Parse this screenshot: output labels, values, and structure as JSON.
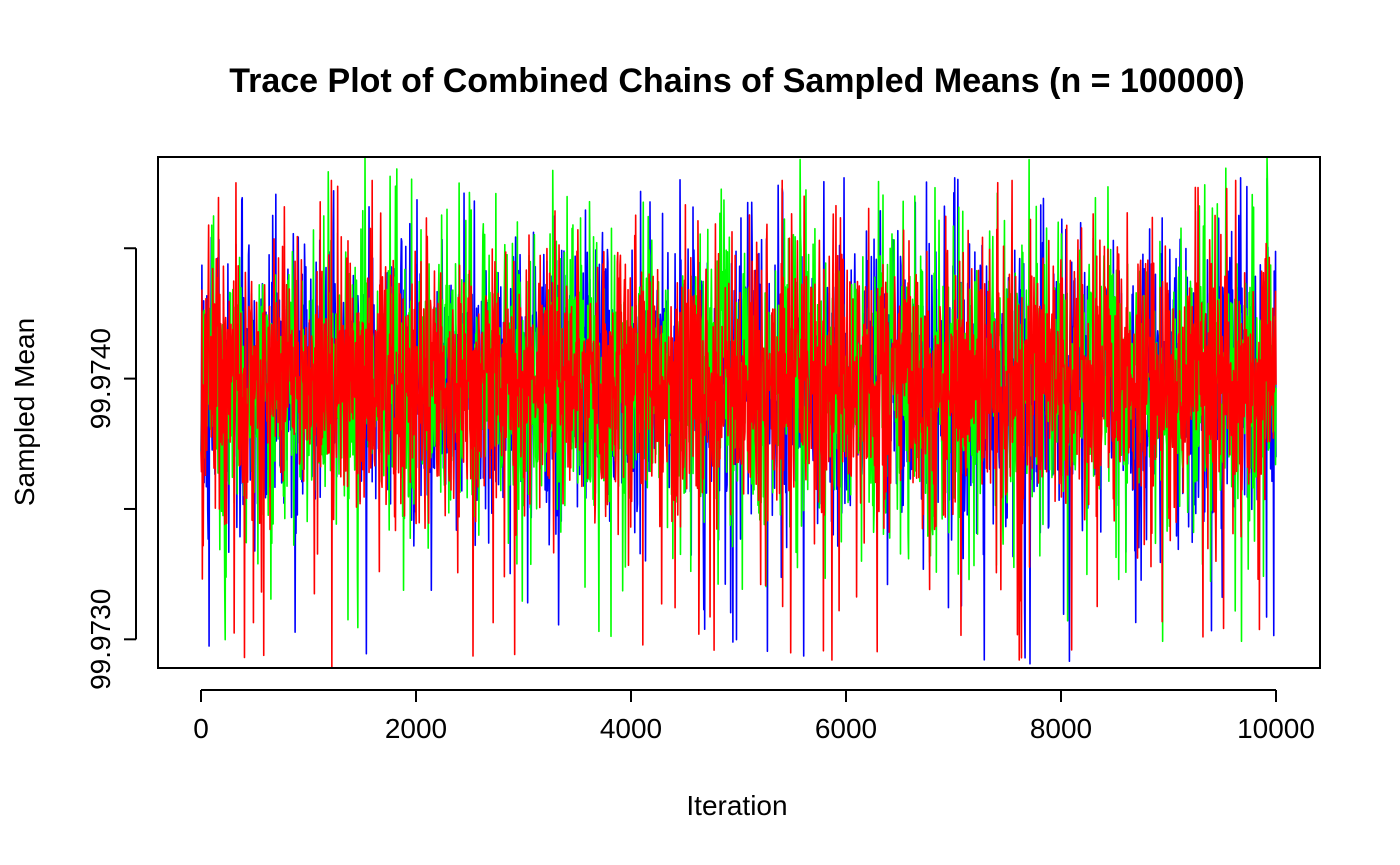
{
  "chart_data": {
    "type": "line",
    "title": "Trace Plot of Combined Chains of Sampled Means (n = 100000)",
    "xlabel": "Iteration",
    "ylabel": "Sampled Mean",
    "xlim": [
      0,
      10000
    ],
    "ylim": [
      99.97289,
      99.97485
    ],
    "x_ticks": [
      0,
      2000,
      4000,
      6000,
      8000,
      10000
    ],
    "y_ticks": [
      99.973,
      99.9735,
      99.974,
      99.9745
    ],
    "y_tick_labels": [
      "99.9730",
      "",
      "99.9740",
      ""
    ],
    "x_tick_labels": [
      "0",
      "2000",
      "4000",
      "6000",
      "8000",
      "10000"
    ],
    "grid": false,
    "legend": "none",
    "iterations_per_chain": 10000,
    "series": [
      {
        "color": "#0000ff",
        "center": 99.97372,
        "typical_range": [
          99.97335,
          99.97462
        ],
        "observed_min": 99.9729,
        "observed_max": 99.97477,
        "values_preview": [
          99.97372,
          99.97351,
          99.97394,
          99.97322,
          99.97441,
          99.9737,
          99.97303,
          99.9742,
          99.97388,
          99.97345
        ]
      },
      {
        "color": "#00ff00",
        "center": 99.97372,
        "typical_range": [
          99.97335,
          99.97462
        ],
        "observed_min": 99.97299,
        "observed_max": 99.97485,
        "values_preview": [
          99.97372,
          99.97396,
          99.97331,
          99.97418,
          99.97354,
          99.97309,
          99.97444,
          99.97377,
          99.97324,
          99.97401
        ]
      },
      {
        "color": "#ff0000",
        "center": 99.97372,
        "typical_range": [
          99.97335,
          99.97462
        ],
        "observed_min": 99.97289,
        "observed_max": 99.97476,
        "values_preview": [
          99.97372,
          99.97338,
          99.97412,
          99.97363,
          99.97296,
          99.97429,
          99.97384,
          99.97317,
          99.97452,
          99.97368
        ]
      }
    ]
  }
}
